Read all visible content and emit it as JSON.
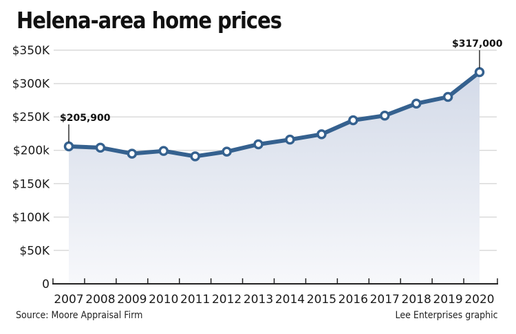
{
  "chart_data": {
    "type": "area",
    "title": "Helena-area home prices",
    "xlabel": "",
    "ylabel": "",
    "categories": [
      "2007",
      "2008",
      "2009",
      "2010",
      "2011",
      "2012",
      "2013",
      "2014",
      "2015",
      "2016",
      "2017",
      "2018",
      "2019",
      "2020"
    ],
    "series": [
      {
        "name": "Home price",
        "values": [
          205900,
          204000,
          195000,
          199000,
          191000,
          198000,
          209000,
          216000,
          224000,
          245000,
          252000,
          270000,
          280000,
          317000
        ]
      }
    ],
    "ylim": [
      0,
      350000
    ],
    "yticks": [
      0,
      50000,
      100000,
      150000,
      200000,
      250000,
      300000,
      350000
    ],
    "ytick_labels": [
      "0",
      "$50K",
      "$100K",
      "$150K",
      "$200k",
      "$250K",
      "$300K",
      "$350K"
    ],
    "grid": true,
    "annotations": [
      {
        "category": "2007",
        "value": 205900,
        "text": "$205,900"
      },
      {
        "category": "2020",
        "value": 317000,
        "text": "$317,000"
      }
    ],
    "colors": {
      "line": "#35618f",
      "fill_top": "#d3dae8",
      "fill_bottom": "#f7f8fb",
      "grid": "#d9d9d9",
      "axis": "#222222",
      "marker_fill": "#ffffff"
    }
  },
  "footer": {
    "source": "Source: Moore Appraisal Firm",
    "credit": "Lee Enterprises graphic"
  }
}
